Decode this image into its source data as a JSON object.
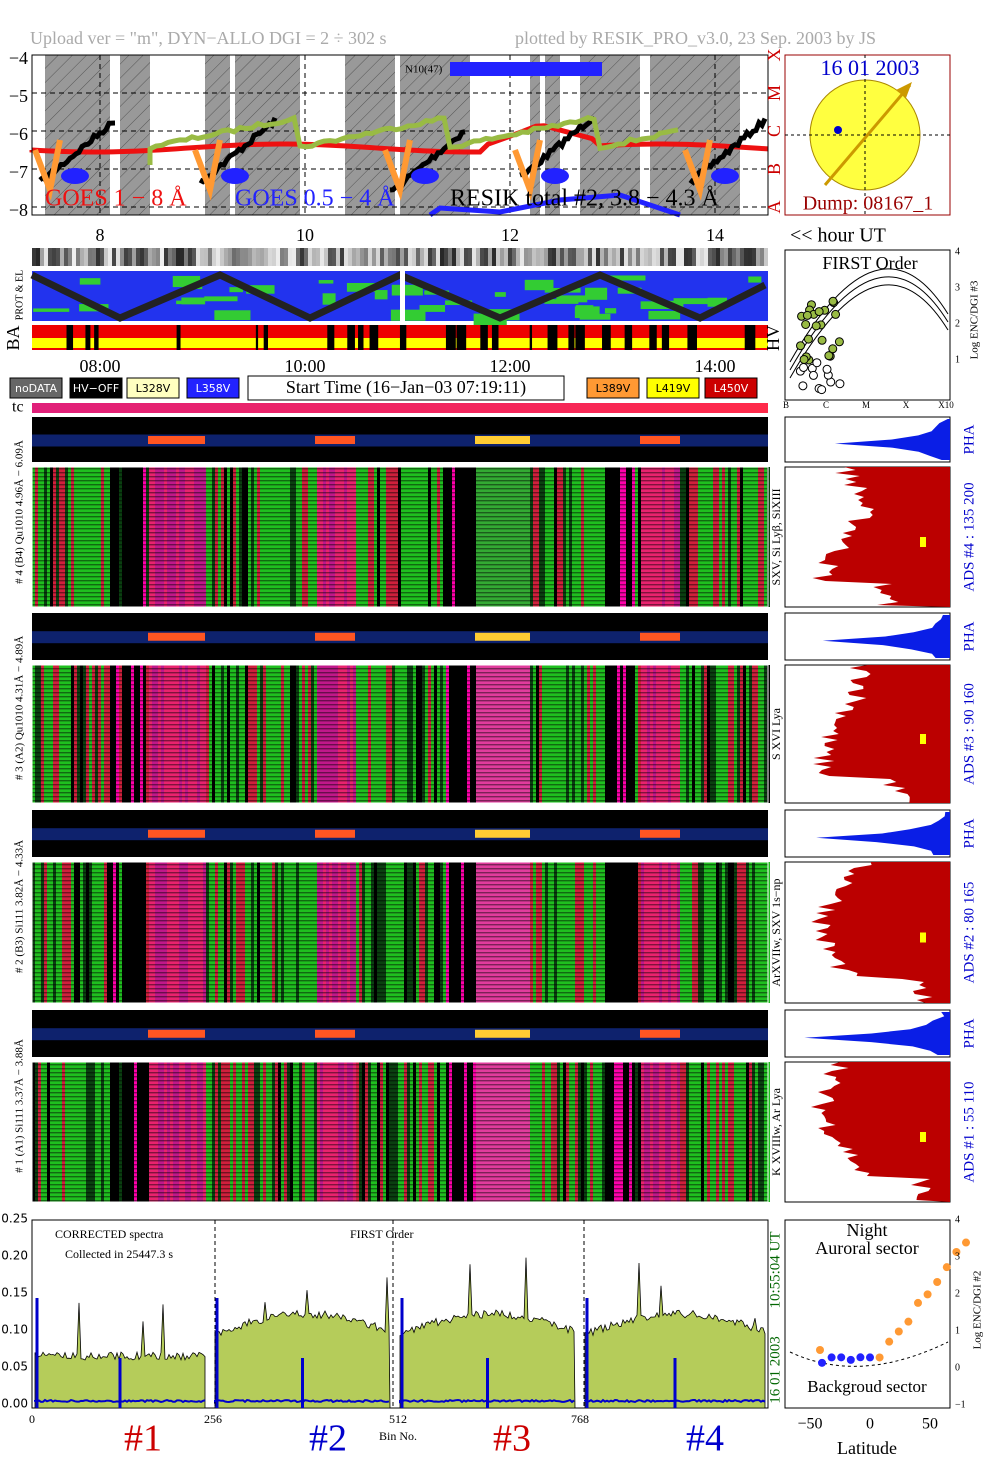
{
  "header": {
    "left": "Upload ver = \"m\", DYN−ALLO DGI =   2 ÷ 302 s",
    "right": "plotted by RESIK_PRO_v3.0, 23 Sep. 2003 by JS"
  },
  "goes": {
    "yticks": [
      "−4",
      "−5",
      "−6",
      "−7",
      "−8"
    ],
    "classes": [
      "X",
      "M",
      "C",
      "B",
      "A"
    ],
    "legend": [
      "GOES 1 − 8 Å",
      "GOES 0.5 − 4 Å",
      "RESIK total #2, 3.8 − 4.3 Å"
    ],
    "region": "N10(47)",
    "xticks": [
      "8",
      "10",
      "12",
      "14"
    ],
    "xlabel": "<< hour UT"
  },
  "sun": {
    "date": "16 01 2003",
    "dump": "Dump: 08167_1"
  },
  "status": {
    "labels": [
      "PROT & EL",
      "BA",
      "HV"
    ],
    "times": [
      "08:00",
      "10:00",
      "12:00",
      "14:00"
    ],
    "legend": [
      "noDATA",
      "HV−OFF",
      "L328V",
      "L358V",
      "L389V",
      "L419V",
      "L450V"
    ],
    "start": "Start Time (16−Jan−03 07:19:11)",
    "tc": "tc"
  },
  "first_order": {
    "title": "FIRST Order",
    "ylabel": "Log ENC/DGI #3",
    "yticks": [
      "1",
      "2",
      "3",
      "4"
    ],
    "xticks": [
      "B",
      "C",
      "M",
      "X",
      "X10"
    ]
  },
  "channels": [
    {
      "label": "# 4 (B4) Qu1010 4.96Å − 6.09Å",
      "lines": "SXV, Si Lyβ, SiXIII",
      "ads": "ADS #4 :   135 200",
      "pha": "PHA"
    },
    {
      "label": "# 3 (A2) Qu1010 4.31Å − 4.89Å",
      "lines": "S XVI Lya",
      "ads": "ADS #3 :   90 160",
      "pha": "PHA"
    },
    {
      "label": "# 2 (B3) Si111 3.82Å − 4.33Å",
      "lines": "ArXVIIw, SXV 1s−np",
      "ads": "ADS #2 :   80 165",
      "pha": "PHA"
    },
    {
      "label": "# 1 (A1) Si111 3.37Å − 3.88Å",
      "lines": "K XVIIIw, Ar Lya",
      "ads": "ADS #1 :   55 110",
      "pha": "PHA"
    }
  ],
  "spectrum": {
    "yticks": [
      "0.00",
      "0.05",
      "0.10",
      "0.15",
      "0.20",
      "0.25"
    ],
    "xticks": [
      "0",
      "256",
      "512",
      "768"
    ],
    "xlabel": "Bin No.",
    "note1": "CORRECTED spectra",
    "note2": "Collected in 25447.3 s",
    "order": "FIRST Order",
    "time": "10:55:04 UT",
    "date": "16 01 2003",
    "channels": [
      "#1",
      "#2",
      "#3",
      "#4"
    ]
  },
  "orbit": {
    "night": "Night",
    "auroral": "Auroral sector",
    "background": "Backgroud sector",
    "xlabel": "Latitude",
    "xticks": [
      "−50",
      "0",
      "50"
    ],
    "yticks": [
      "−1",
      "0",
      "1",
      "2",
      "3",
      "4"
    ],
    "ylabel": "Log ENC/DGI #2"
  }
}
